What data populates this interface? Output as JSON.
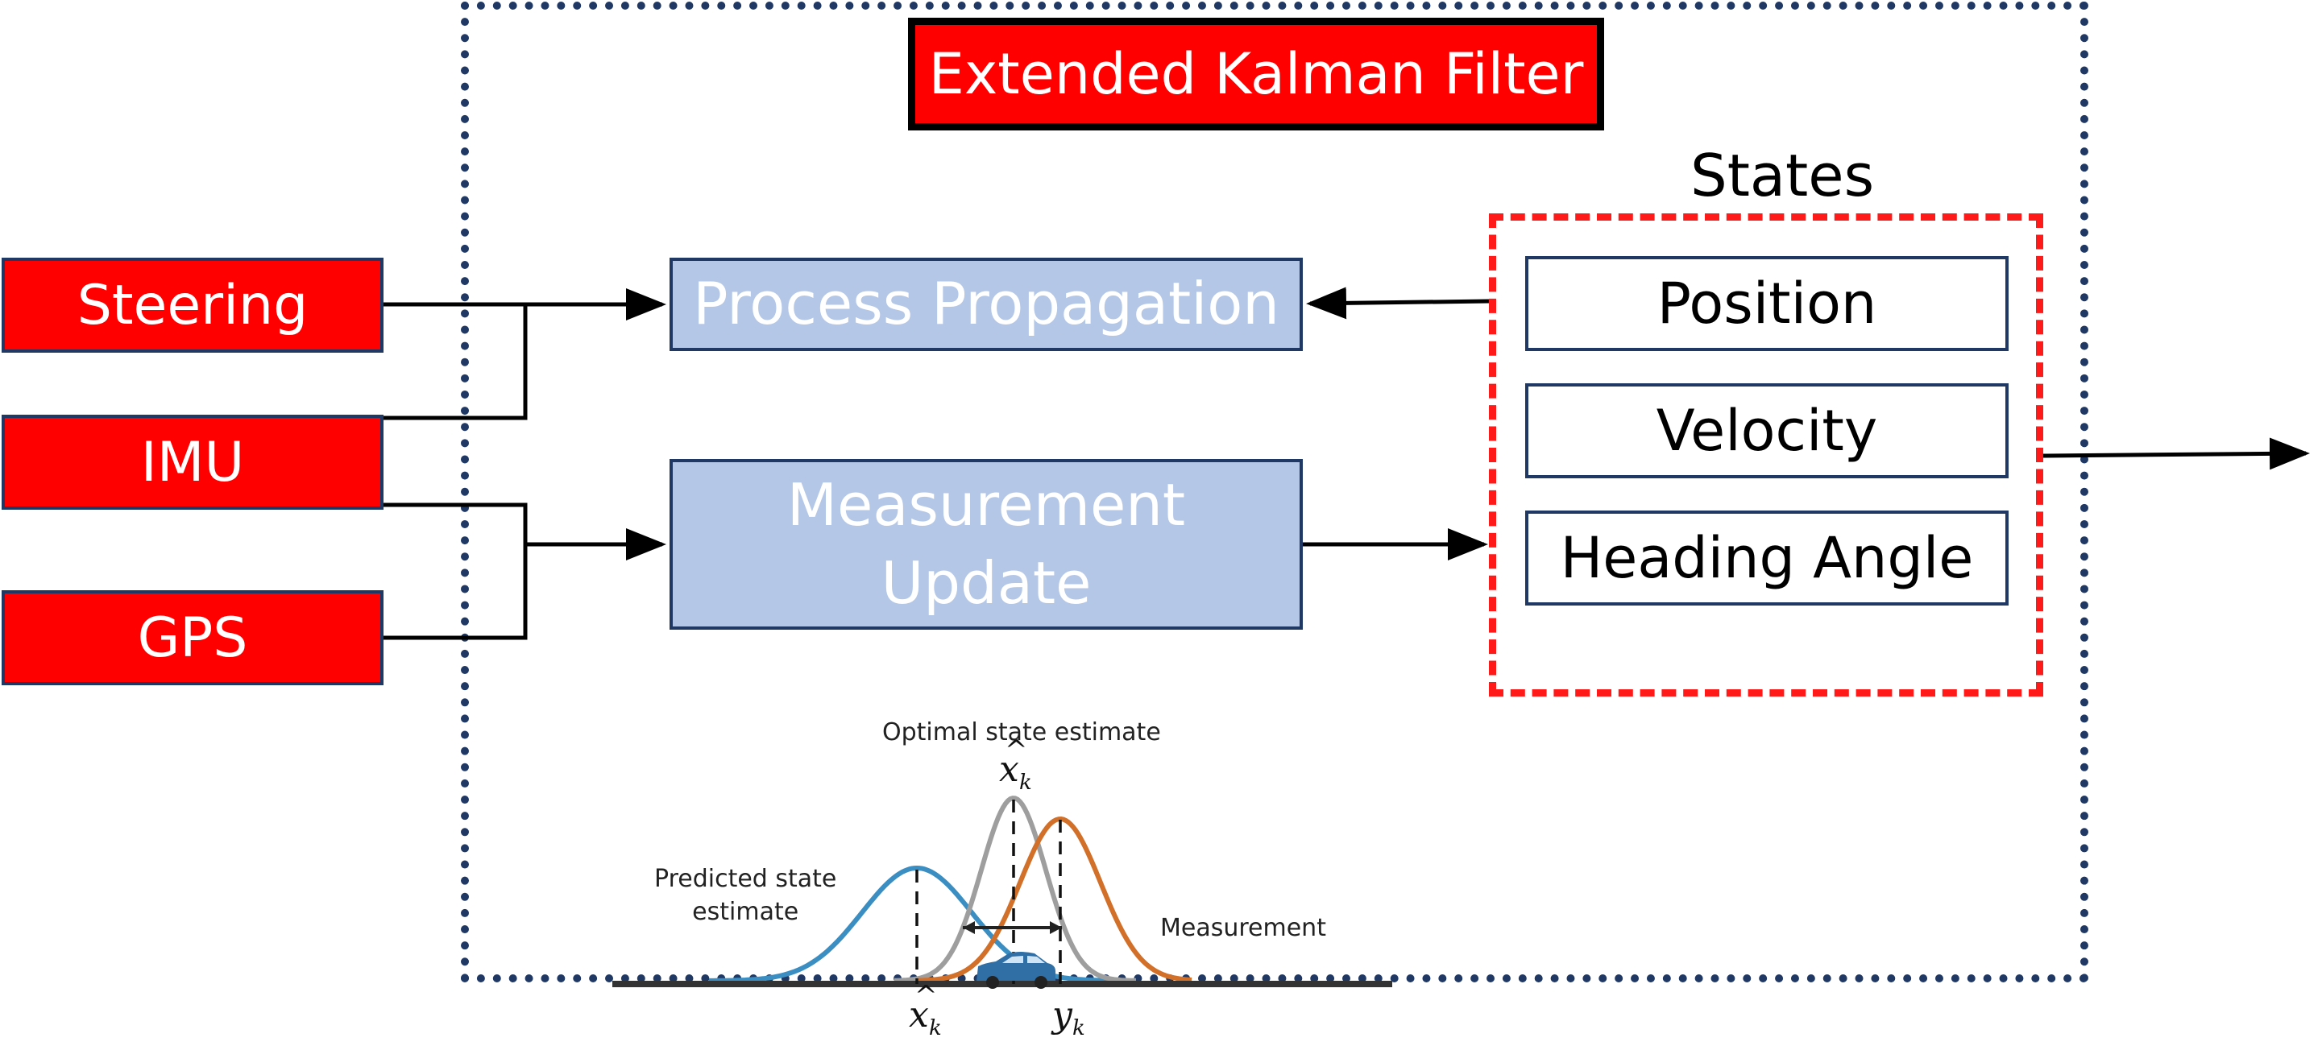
{
  "title": "Extended Kalman Filter",
  "inputs": {
    "steering": "Steering",
    "imu": "IMU",
    "gps": "GPS"
  },
  "blocks": {
    "process": "Process Propagation",
    "measurement": "Measurement\nUpdate"
  },
  "states": {
    "label": "States",
    "items": [
      "Position",
      "Velocity",
      "Heading Angle"
    ]
  },
  "inset": {
    "optimal_label": "Optimal state estimate",
    "predicted_label": "Predicted state\nestimate",
    "measurement_label": "Measurement",
    "colors": {
      "predicted": "#3b8ec2",
      "optimal": "#9e9e9e",
      "measurement": "#d2702a"
    }
  },
  "colors": {
    "red": "#ff0000",
    "navy": "#1f3864",
    "light_blue": "#b4c7e7"
  }
}
